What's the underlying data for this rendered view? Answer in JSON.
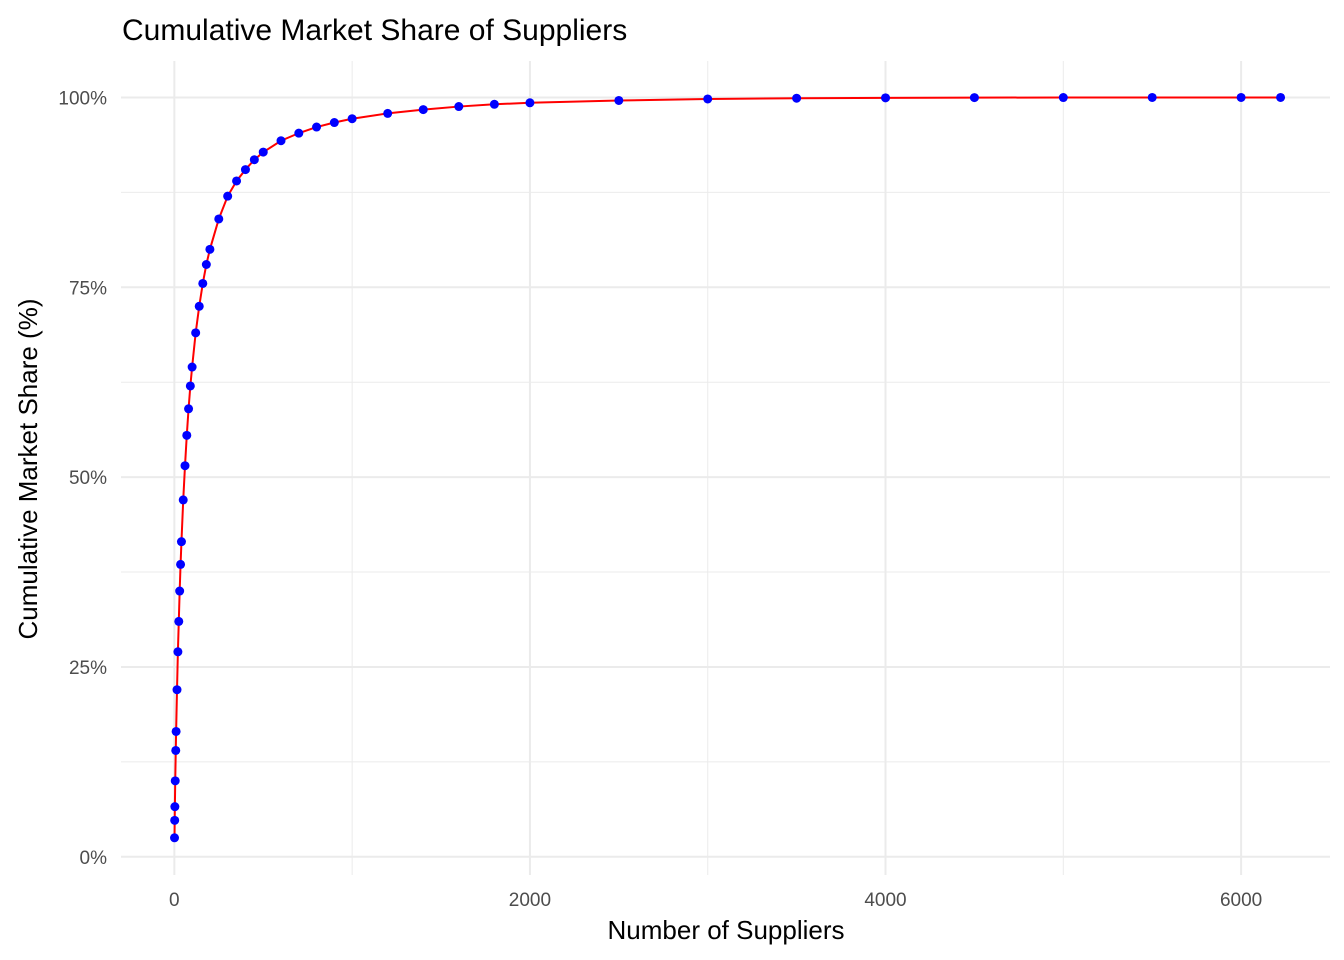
{
  "chart_data": {
    "type": "line",
    "title": "Cumulative Market Share of Suppliers",
    "xlabel": "Number of Suppliers",
    "ylabel": "Cumulative Market Share (%)",
    "xlim": [
      -300,
      6500
    ],
    "ylim": [
      -0.024,
      1.048
    ],
    "x_ticks": [
      0,
      2000,
      4000,
      6000
    ],
    "x_tick_labels": [
      "0",
      "2000",
      "4000",
      "6000"
    ],
    "x_minor_ticks": [
      1000,
      3000,
      5000
    ],
    "y_ticks": [
      0,
      0.25,
      0.5,
      0.75,
      1.0
    ],
    "y_tick_labels": [
      "0%",
      "25%",
      "50%",
      "75%",
      "100%"
    ],
    "y_minor_ticks": [
      0.125,
      0.375,
      0.625,
      0.875
    ],
    "grid": true,
    "legend": "none",
    "colors": {
      "line": "#ff0000",
      "points": "#0000ff",
      "grid": "#ebebeb",
      "tick_label": "#4d4d4d"
    },
    "series": [
      {
        "x": [
          1,
          2,
          3,
          5,
          8,
          10,
          15,
          20,
          25,
          30,
          35,
          40,
          50,
          60,
          70,
          80,
          90,
          100,
          120,
          140,
          160,
          180,
          200,
          250,
          300,
          350,
          400,
          450,
          500,
          600,
          700,
          800,
          900,
          1000,
          1200,
          1400,
          1600,
          1800,
          2000,
          2500,
          3000,
          3500,
          4000,
          4500,
          5000,
          5500,
          6000,
          6222
        ],
        "y": [
          0.025,
          0.048,
          0.066,
          0.1,
          0.14,
          0.165,
          0.22,
          0.27,
          0.31,
          0.35,
          0.385,
          0.415,
          0.47,
          0.515,
          0.555,
          0.59,
          0.62,
          0.645,
          0.69,
          0.725,
          0.755,
          0.78,
          0.8,
          0.84,
          0.87,
          0.89,
          0.905,
          0.918,
          0.928,
          0.943,
          0.953,
          0.961,
          0.967,
          0.972,
          0.979,
          0.984,
          0.988,
          0.991,
          0.993,
          0.996,
          0.998,
          0.999,
          0.9995,
          0.9998,
          0.9999,
          1.0,
          1.0,
          1.0
        ]
      }
    ]
  }
}
